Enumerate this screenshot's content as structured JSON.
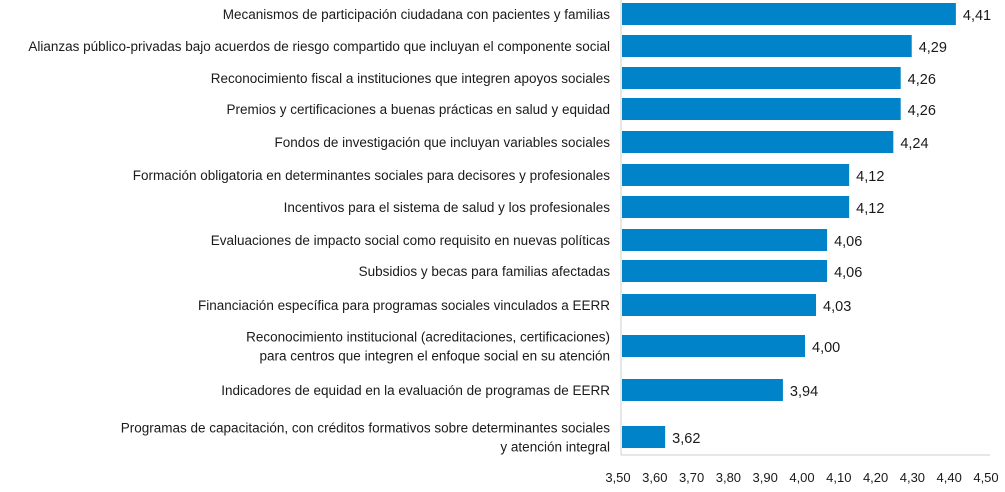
{
  "chart_data": {
    "type": "bar",
    "orientation": "horizontal",
    "title": "",
    "xlabel": "",
    "ylabel": "",
    "xlim": [
      3.5,
      4.5
    ],
    "grid": false,
    "bar_color": "#0083c9",
    "categories": [
      [
        "Mecanismos de participación ciudadana con pacientes y familias"
      ],
      [
        "Alianzas público-privadas bajo acuerdos de riesgo compartido que incluyan el componente social"
      ],
      [
        "Reconocimiento fiscal a instituciones que integren apoyos sociales"
      ],
      [
        "Premios y certificaciones a buenas prácticas en salud y equidad"
      ],
      [
        "Fondos de investigación que incluyan variables sociales"
      ],
      [
        "Formación obligatoria en determinantes sociales para decisores y profesionales"
      ],
      [
        "Incentivos para el sistema de salud y los profesionales"
      ],
      [
        "Evaluaciones de impacto social como requisito en nuevas políticas"
      ],
      [
        "Subsidios y becas para familias afectadas"
      ],
      [
        "Financiación específica para programas sociales vinculados a EERR"
      ],
      [
        "Reconocimiento institucional (acreditaciones, certificaciones)",
        "para centros que integren el enfoque social en su atención"
      ],
      [
        "Indicadores de equidad en la evaluación de programas de EERR"
      ],
      [
        "Programas de capacitación, con créditos formativos sobre determinantes sociales",
        "y atención integral"
      ]
    ],
    "values": [
      4.41,
      4.29,
      4.26,
      4.26,
      4.24,
      4.12,
      4.12,
      4.06,
      4.06,
      4.03,
      4.0,
      3.94,
      3.62
    ],
    "value_labels": [
      "4,41",
      "4,29",
      "4,26",
      "4,26",
      "4,24",
      "4,12",
      "4,12",
      "4,06",
      "4,06",
      "4,03",
      "4,00",
      "3,94",
      "3,62"
    ],
    "x_ticks": [
      3.5,
      3.6,
      3.7,
      3.8,
      3.9,
      4.0,
      4.1,
      4.2,
      4.3,
      4.4,
      4.5
    ],
    "x_tick_labels": [
      "3,50",
      "3,60",
      "3,70",
      "3,80",
      "3,90",
      "4,00",
      "4,10",
      "4,20",
      "4,30",
      "4,40",
      "4,50"
    ]
  }
}
